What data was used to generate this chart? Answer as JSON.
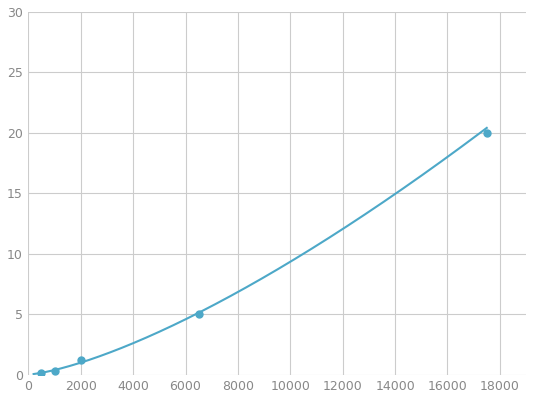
{
  "x": [
    500,
    1000,
    2000,
    6500,
    17500
  ],
  "y": [
    0.15,
    0.3,
    1.2,
    5.0,
    20.0
  ],
  "line_color": "#4da8c8",
  "marker_color": "#4da8c8",
  "marker_size": 5,
  "linewidth": 1.5,
  "xlim": [
    0,
    19000
  ],
  "ylim": [
    0,
    30
  ],
  "xticks": [
    0,
    2000,
    4000,
    6000,
    8000,
    10000,
    12000,
    14000,
    16000,
    18000
  ],
  "yticks": [
    0,
    5,
    10,
    15,
    20,
    25,
    30
  ],
  "grid_color": "#cccccc",
  "background_color": "#ffffff",
  "tick_labelsize": 9
}
